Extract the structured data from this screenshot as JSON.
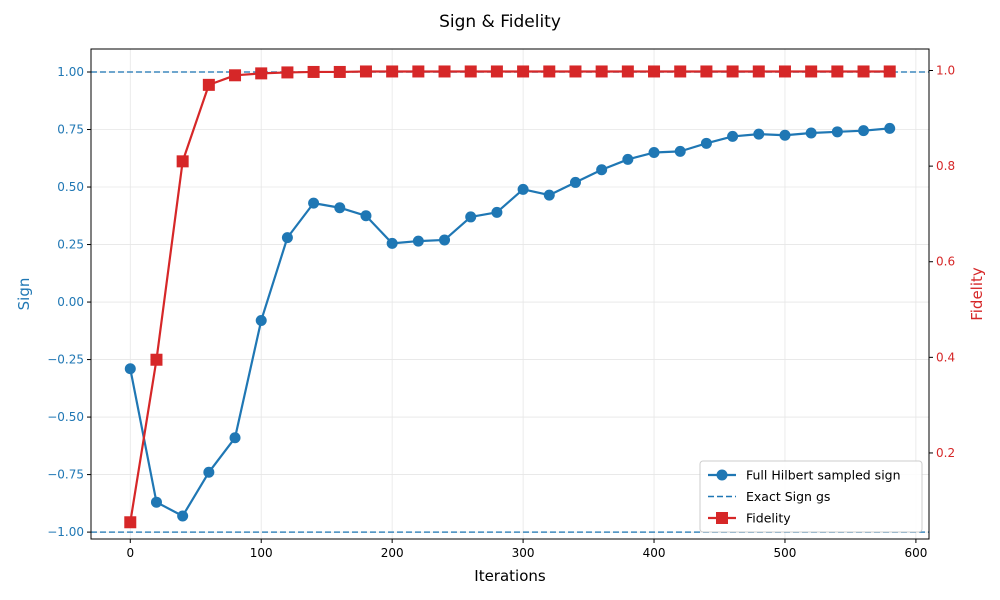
{
  "chart_data": {
    "type": "line",
    "title": "Sign & Fidelity",
    "xlabel": "Iterations",
    "ylabel_left": "Sign",
    "ylabel_right": "Fidelity",
    "xlim": [
      -30,
      610
    ],
    "ylim_left": [
      -1.03,
      1.1
    ],
    "ylim_right": [
      0.02,
      1.045
    ],
    "xticks": [
      0,
      100,
      200,
      300,
      400,
      500,
      600
    ],
    "yticks_left": [
      -1.0,
      -0.75,
      -0.5,
      -0.25,
      0.0,
      0.25,
      0.5,
      0.75,
      1.0
    ],
    "yticks_left_labels": [
      "−1.00",
      "−0.75",
      "−0.50",
      "−0.25",
      "0.00",
      "0.25",
      "0.50",
      "0.75",
      "1.00"
    ],
    "yticks_right": [
      0.2,
      0.4,
      0.6,
      0.8,
      1.0
    ],
    "yticks_right_labels": [
      "0.2",
      "0.4",
      "0.6",
      "0.8",
      "1.0"
    ],
    "grid": true,
    "legend_position": "lower-right",
    "x": [
      0,
      20,
      40,
      60,
      80,
      100,
      120,
      140,
      160,
      180,
      200,
      220,
      240,
      260,
      280,
      300,
      320,
      340,
      360,
      380,
      400,
      420,
      440,
      460,
      480,
      500,
      520,
      540,
      560,
      580
    ],
    "series": [
      {
        "name": "Full Hilbert sampled sign",
        "axis": "left",
        "color": "#1f77b4",
        "marker": "circle",
        "values": [
          -0.29,
          -0.87,
          -0.93,
          -0.74,
          -0.59,
          -0.08,
          0.28,
          0.43,
          0.41,
          0.375,
          0.255,
          0.265,
          0.27,
          0.37,
          0.39,
          0.49,
          0.465,
          0.52,
          0.575,
          0.62,
          0.65,
          0.655,
          0.69,
          0.72,
          0.73,
          0.725,
          0.735,
          0.74,
          0.745,
          0.755
        ]
      },
      {
        "name": "Fidelity",
        "axis": "right",
        "color": "#d62728",
        "marker": "square",
        "values": [
          0.055,
          0.395,
          0.81,
          0.97,
          0.99,
          0.994,
          0.996,
          0.997,
          0.997,
          0.998,
          0.998,
          0.998,
          0.998,
          0.998,
          0.998,
          0.998,
          0.998,
          0.998,
          0.998,
          0.998,
          0.998,
          0.998,
          0.998,
          0.998,
          0.998,
          0.998,
          0.998,
          0.998,
          0.998,
          0.998
        ]
      }
    ],
    "reference_lines": [
      {
        "name": "Exact Sign gs",
        "axis": "left",
        "values": [
          1.0,
          -1.0
        ],
        "color": "#1f77b4",
        "style": "dashed"
      }
    ],
    "colors": {
      "sign_axis": "#1f77b4",
      "fidelity_axis": "#d62728",
      "grid": "#e6e6e6",
      "frame": "#000000"
    }
  }
}
